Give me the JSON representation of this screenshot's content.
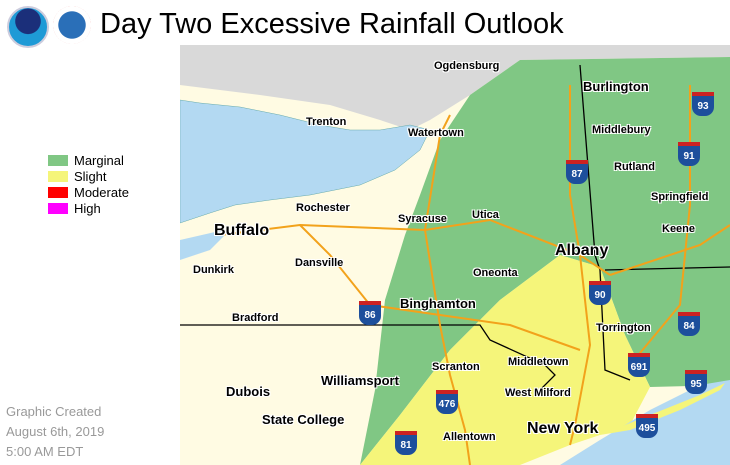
{
  "title": "Day Two Excessive Rainfall Outlook",
  "logos": [
    "NOAA",
    "National Weather Service"
  ],
  "legend": [
    {
      "label": "Marginal",
      "color": "#80c784"
    },
    {
      "label": "Slight",
      "color": "#f5f57a"
    },
    {
      "label": "Moderate",
      "color": "#ff0000"
    },
    {
      "label": "High",
      "color": "#ff00ff"
    }
  ],
  "created": {
    "line1": "Graphic Created",
    "line2": "August 6th, 2019",
    "line3": "5:00 AM EDT"
  },
  "cities": [
    "Ogdensburg",
    "Burlington",
    "Trenton",
    "Watertown",
    "Middlebury",
    "Rutland",
    "Rochester",
    "Syracuse",
    "Utica",
    "Springfield",
    "Buffalo",
    "Keene",
    "Albany",
    "Dunkirk",
    "Dansville",
    "Oneonta",
    "Binghamton",
    "Bradford",
    "Torrington",
    "Middletown",
    "Scranton",
    "Williamsport",
    "Dubois",
    "West Milford",
    "State College",
    "New York",
    "Allentown"
  ],
  "interstates": [
    "93",
    "91",
    "87",
    "90",
    "86",
    "84",
    "691",
    "95",
    "476",
    "495",
    "81"
  ]
}
